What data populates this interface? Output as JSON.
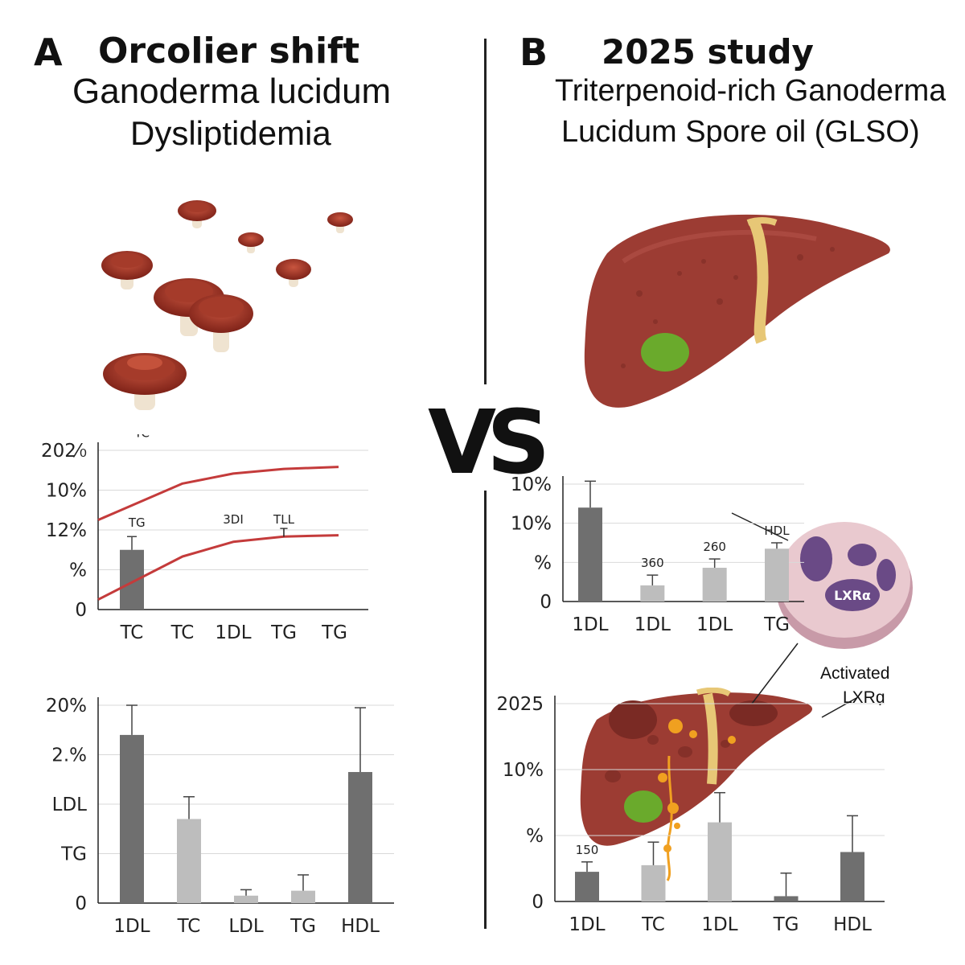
{
  "panel_a": {
    "letter": "A",
    "title_line1": "Orcolier shift",
    "title_line2": "Ganoderma lucidum",
    "title_line3": "Dysliptidemia"
  },
  "panel_b": {
    "letter": "B",
    "title_line1": "2025 study",
    "title_line2": "Triterpenoid-rich Ganoderma",
    "title_line3": "Lucidum Spore oil (GLSO)"
  },
  "vs_label": "VS",
  "cell_label": "LXRα",
  "activated_label_line1": "Activated",
  "activated_label_line2": "LXRɑ̣",
  "colors": {
    "curve": "#c43b3b",
    "bar_dark": "#6f6f6f",
    "bar_light": "#bdbdbd",
    "liver": "#9c3c33",
    "gallbladder": "#6aaa2c",
    "bile_duct": "#e7c776"
  },
  "chart_data": [
    {
      "id": "a1",
      "type": "line",
      "yticks": [
        "202⁄₀",
        "10%",
        "12%",
        "%",
        "0"
      ],
      "categories": [
        "TC",
        "TC",
        "1DL",
        "TG",
        "TG"
      ],
      "series": [
        {
          "values": [
            1.35,
            1.9,
            2.05,
            2.12,
            2.15
          ]
        },
        {
          "values": [
            0.15,
            0.8,
            1.02,
            1.1,
            1.12
          ]
        }
      ],
      "bars": [
        {
          "category": 0,
          "value": 0.9,
          "err": 0.2
        }
      ],
      "annotations": [
        {
          "text": "TC",
          "at": 2.6,
          "cat": 0.2
        },
        {
          "text": "TG",
          "at": 1.25,
          "cat": 0.1
        },
        {
          "text": "3DI",
          "at": 1.3,
          "cat": 2.0
        },
        {
          "text": "TLL",
          "at": 1.3,
          "cat": 3.0
        },
        {
          "text": "T",
          "at": 1.1,
          "cat": 3.0
        }
      ],
      "ylim": [
        0,
        2.4
      ]
    },
    {
      "id": "a2",
      "type": "bar",
      "yticks": [
        "20%",
        "2.%",
        "LDL",
        "TG",
        "0"
      ],
      "categories": [
        "1DL",
        "TC",
        "LDL",
        "TG",
        "HDL"
      ],
      "values": [
        3.4,
        1.7,
        0.15,
        0.25,
        2.65
      ],
      "errors": [
        0.6,
        0.45,
        0.12,
        0.32,
        1.3
      ],
      "shades": [
        "dark",
        "light",
        "light",
        "light",
        "dark"
      ],
      "ylim": [
        0,
        4
      ]
    },
    {
      "id": "b1",
      "type": "bar",
      "yticks": [
        "10%",
        "10%",
        "%",
        "0"
      ],
      "categories": [
        "1DL",
        "1DL",
        "1DL",
        "TG"
      ],
      "values": [
        3.2,
        0.55,
        1.15,
        1.8
      ],
      "errors": [
        0.9,
        0.35,
        0.3,
        0.2
      ],
      "shades": [
        "dark",
        "light",
        "light",
        "light"
      ],
      "bar_labels": [
        "",
        "360",
        "260",
        "HDL"
      ],
      "ylim": [
        0,
        4
      ]
    },
    {
      "id": "b2",
      "type": "bar",
      "yticks": [
        "2025",
        "10%",
        "%",
        "0"
      ],
      "categories": [
        "1DL",
        "TC",
        "1DL",
        "TG",
        "HDL"
      ],
      "values": [
        0.45,
        0.55,
        1.2,
        0.08,
        0.75
      ],
      "errors": [
        0.15,
        0.35,
        0.45,
        0.35,
        0.55
      ],
      "shades": [
        "dark",
        "light",
        "light",
        "dark",
        "dark"
      ],
      "bar_labels": [
        "150",
        "",
        "",
        "",
        ""
      ],
      "ylim": [
        0,
        3
      ]
    }
  ]
}
